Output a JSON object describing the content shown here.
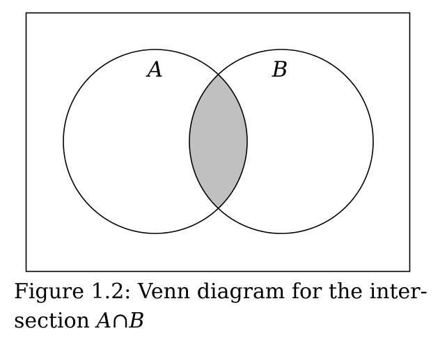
{
  "diagram": {
    "set_a_label": "A",
    "set_b_label": "B",
    "shade_color": "#c0c0c0",
    "outline_color": "#000000",
    "background_color": "#ffffff"
  },
  "caption": {
    "line1": "Figure 1.2: Venn diagram for the inter-",
    "line2_prefix": "section ",
    "set_a": "A",
    "operator": "∩",
    "set_b": "B"
  }
}
